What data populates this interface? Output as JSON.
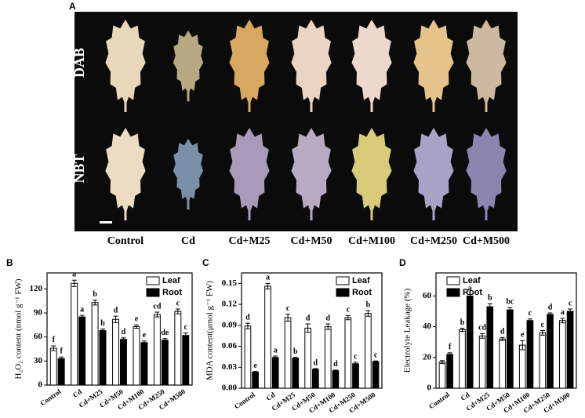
{
  "panel_a": {
    "letter": "A",
    "rows": [
      "DAB",
      "NBT"
    ],
    "columns": [
      "Control",
      "Cd",
      "Cd+M25",
      "Cd+M50",
      "Cd+M100",
      "Cd+M250",
      "Cd+M500"
    ]
  },
  "chart_data": [
    {
      "type": "bar",
      "panel": "B",
      "ylabel": "H₂O₂ content (nmol g⁻¹ FW)",
      "categories": [
        "Control",
        "Cd",
        "Cd+M25",
        "Cd+M50",
        "Cd+M100",
        "Cd+M250",
        "Cd+M500"
      ],
      "ylim": [
        0,
        140
      ],
      "yticks": [
        0,
        30,
        60,
        90,
        120
      ],
      "legend": "top-right",
      "series": [
        {
          "name": "Leaf",
          "color": "#ffffff",
          "values": [
            46,
            127,
            103,
            82,
            73,
            88,
            92
          ],
          "errors": [
            3,
            4,
            3,
            4,
            2,
            3,
            3
          ],
          "letters": [
            "f",
            "a",
            "b",
            "d",
            "e",
            "cd",
            "c"
          ]
        },
        {
          "name": "Root",
          "color": "#000000",
          "values": [
            33,
            85,
            68,
            57,
            53,
            56,
            62
          ],
          "errors": [
            2,
            2,
            2,
            2,
            2,
            2,
            3
          ],
          "letters": [
            "f",
            "a",
            "b",
            "d",
            "e",
            "de",
            "c"
          ]
        }
      ]
    },
    {
      "type": "bar",
      "panel": "C",
      "ylabel": "MDA content(μmol g⁻¹ FW)",
      "categories": [
        "Control",
        "Cd",
        "Cd+M25",
        "Cd+M50",
        "Cd+M100",
        "Cd+M250",
        "Cd+M500"
      ],
      "ylim": [
        0,
        0.165
      ],
      "yticks": [
        {
          "value": 0,
          "label": "0.00"
        },
        0.03,
        0.06,
        0.09,
        0.12,
        0.15
      ],
      "legend": "top-right",
      "series": [
        {
          "name": "Leaf",
          "color": "#ffffff",
          "values": [
            0.089,
            0.146,
            0.101,
            0.086,
            0.088,
            0.101,
            0.107
          ],
          "errors": [
            0.004,
            0.004,
            0.005,
            0.006,
            0.004,
            0.003,
            0.004
          ],
          "letters": [
            "d",
            "a",
            "c",
            "d",
            "d",
            "c",
            "b"
          ]
        },
        {
          "name": "Root",
          "color": "#000000",
          "values": [
            0.023,
            0.044,
            0.043,
            0.027,
            0.025,
            0.035,
            0.038
          ],
          "errors": [
            0.001,
            0.002,
            0.001,
            0.001,
            0.001,
            0.002,
            0.001
          ],
          "letters": [
            "e",
            "a",
            "b",
            "d",
            "d",
            "c",
            "c"
          ]
        }
      ]
    },
    {
      "type": "bar",
      "panel": "D",
      "ylabel": "Electrolyte Leakage (%)",
      "categories": [
        "Control",
        "Cd",
        "Cd+M25",
        "Cd+M50",
        "Cd+M100",
        "Cd+M250",
        "Cd+M500"
      ],
      "ylim": [
        0,
        75
      ],
      "yticks": [
        0,
        20,
        40,
        60
      ],
      "legend": "top-left",
      "series": [
        {
          "name": "Leaf",
          "color": "#ffffff",
          "values": [
            17,
            38,
            34,
            32,
            28,
            36,
            44
          ],
          "errors": [
            1,
            1,
            1.5,
            1,
            3,
            1.5,
            1.5
          ],
          "letters": [
            null,
            "b",
            "cd",
            "d",
            "e",
            "c",
            "a"
          ]
        },
        {
          "name": "Root",
          "color": "#000000",
          "values": [
            22,
            60,
            53,
            51,
            44,
            48,
            50
          ],
          "errors": [
            1,
            1,
            2,
            1.5,
            1,
            1,
            1.5
          ],
          "letters": [
            "f",
            "a",
            "b",
            "bc",
            "c",
            "d",
            "c"
          ]
        }
      ]
    }
  ]
}
